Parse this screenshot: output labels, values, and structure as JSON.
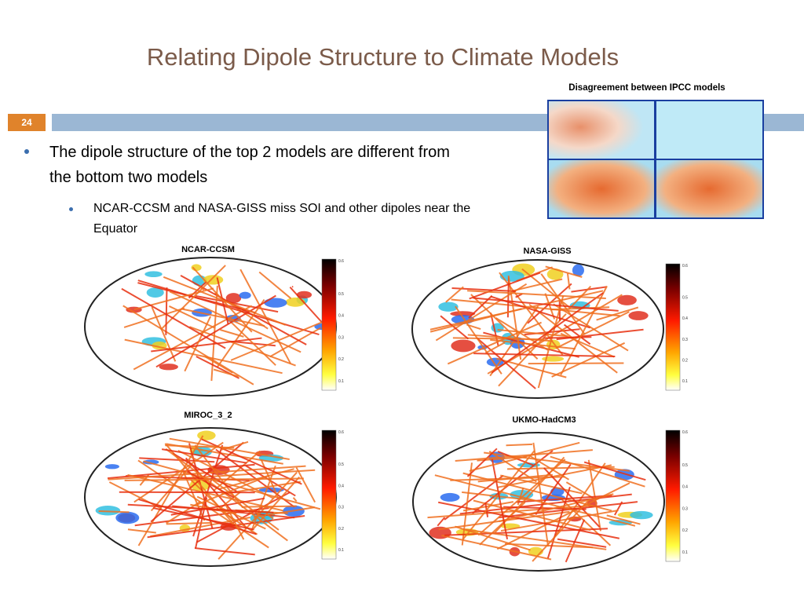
{
  "title": "Relating Dipole Structure to Climate Models",
  "slide_number": "24",
  "bullets": [
    {
      "text": "The dipole structure of the top 2 models are different from the bottom two models",
      "sub": [
        "NCAR-CCSM and NASA-GISS miss SOI and other dipoles near the Equator"
      ]
    }
  ],
  "inset": {
    "caption": "Disagreement between IPCC models"
  },
  "panels": [
    {
      "label": "NCAR-CCSM",
      "colorbar": [
        "0.6",
        "0.5",
        "0.4",
        "0.3",
        "0.2",
        "0.1"
      ]
    },
    {
      "label": "NASA-GISS",
      "colorbar": [
        "0.6",
        "0.5",
        "0.4",
        "0.3",
        "0.2",
        "0.1"
      ]
    },
    {
      "label": "MIROC_3_2",
      "colorbar": [
        "0.6",
        "0.5",
        "0.4",
        "0.3",
        "0.2",
        "0.1"
      ]
    },
    {
      "label": "UKMO-HadCM3",
      "colorbar": [
        "0.6",
        "0.5",
        "0.4",
        "0.3",
        "0.2",
        "0.1"
      ]
    }
  ]
}
